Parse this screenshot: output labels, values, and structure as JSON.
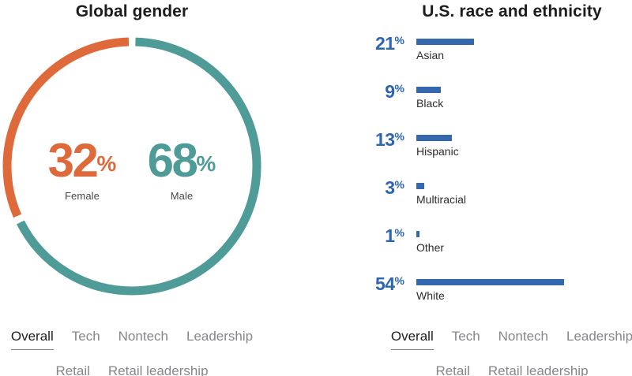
{
  "page": {
    "background": "#ffffff"
  },
  "tabs": {
    "items": [
      "Overall",
      "Tech",
      "Nontech",
      "Leadership",
      "Retail",
      "Retail leadership"
    ],
    "selected": "Overall",
    "first_row_count": 4
  },
  "colors": {
    "title": "#1d1d1f",
    "tab_inactive": "#86868b",
    "tab_active": "#1d1d1f",
    "donut_female": "#de6a3b",
    "donut_male": "#4e9b98",
    "bar_fill": "#3567ae",
    "bar_value_text": "#2d66b0",
    "sub_label": "#48484a",
    "bar_label": "#2c2c2e"
  },
  "chart_data": [
    {
      "type": "donut",
      "title": "Global gender",
      "unit": "%",
      "direction": "clockwise-from-top",
      "gap_between_segments": true,
      "legend_position": "center",
      "segments": [
        {
          "label": "Female",
          "value": 32,
          "color": "#de6a3b"
        },
        {
          "label": "Male",
          "value": 68,
          "color": "#4e9b98"
        }
      ]
    },
    {
      "type": "bar",
      "title": "U.S. race and ethnicity",
      "unit": "%",
      "orientation": "horizontal",
      "grid": false,
      "axis": "none",
      "xlim": [
        0,
        100
      ],
      "bar_color": "#3567ae",
      "value_color": "#2d66b0",
      "rows": [
        {
          "label": "Asian",
          "value": 21
        },
        {
          "label": "Black",
          "value": 9
        },
        {
          "label": "Hispanic",
          "value": 13
        },
        {
          "label": "Multiracial",
          "value": 3
        },
        {
          "label": "Other",
          "value": 1
        },
        {
          "label": "White",
          "value": 54
        }
      ]
    }
  ]
}
